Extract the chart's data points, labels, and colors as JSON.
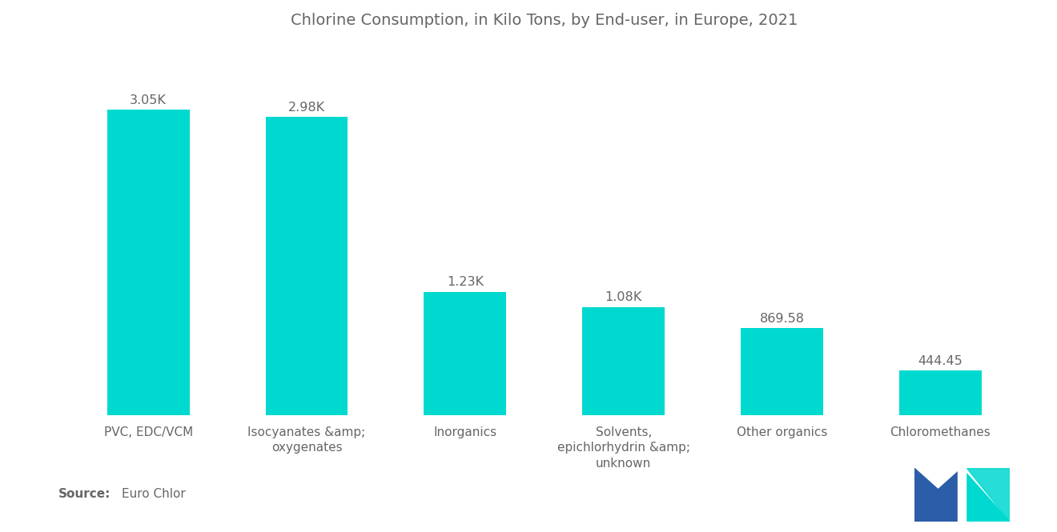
{
  "title": "Chlorine Consumption, in Kilo Tons, by End-user, in Europe, 2021",
  "categories": [
    "PVC, EDC/VCM",
    "Isocyanates &amp;\noxygenates",
    "Inorganics",
    "Solvents,\nepichlorhydrin &amp;\nunknown",
    "Other organics",
    "Chloromethanes"
  ],
  "values": [
    3050,
    2980,
    1230,
    1080,
    869.58,
    444.45
  ],
  "labels": [
    "3.05K",
    "2.98K",
    "1.23K",
    "1.08K",
    "869.58",
    "444.45"
  ],
  "bar_color": "#00D9D0",
  "background_color": "#FFFFFF",
  "title_fontsize": 14,
  "label_fontsize": 11.5,
  "tick_fontsize": 11,
  "source_fontsize": 11,
  "text_color": "#666666",
  "logo_blue": "#2B5DA8",
  "logo_teal": "#00D9D0"
}
